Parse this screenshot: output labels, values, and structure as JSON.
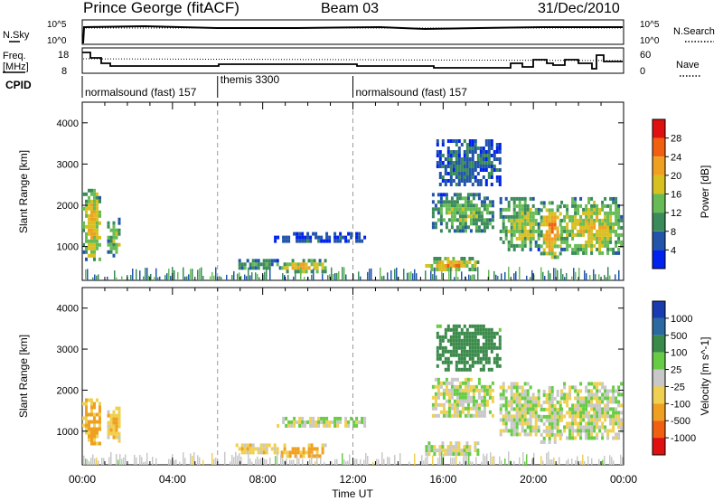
{
  "header": {
    "station": "Prince George (fitACF)",
    "beam": "Beam 03",
    "date": "31/Dec/2010"
  },
  "noise_panel": {
    "left_label": "N.Sky",
    "right_label": "N.Search",
    "left_ticks": [
      "10^5",
      "10^0"
    ],
    "right_ticks": [
      "10^5",
      "10^0"
    ]
  },
  "freq_panel": {
    "left_label_line1": "Freq.",
    "left_label_line2": "[MHz]",
    "right_label": "Nave",
    "left_ticks": [
      "18",
      "8"
    ],
    "right_ticks": [
      "60",
      "0"
    ]
  },
  "cpid": {
    "label": "CPID",
    "segments": [
      {
        "start_hour": 0,
        "name": "normalsound (fast)",
        "id": "157"
      },
      {
        "start_hour": 6,
        "name": "themis",
        "id": "3300"
      },
      {
        "start_hour": 12,
        "name": "normalsound (fast)",
        "id": "157"
      }
    ]
  },
  "chart_data": [
    {
      "type": "heatmap",
      "title": "",
      "xlabel": "",
      "ylabel": "Slant Range [km]",
      "x_range_hours": [
        0,
        24
      ],
      "ylim": [
        180,
        4500
      ],
      "y_ticks": [
        1000,
        2000,
        3000,
        4000
      ],
      "colorbar": {
        "label": "Power [dB]",
        "ticks": [
          "4",
          "8",
          "12",
          "16",
          "20",
          "24",
          "28"
        ],
        "colors": [
          "#0022ee",
          "#2255aa",
          "#3a8a5a",
          "#66bb55",
          "#d8c020",
          "#f0a020",
          "#f06010",
          "#e01010"
        ]
      },
      "echo_regions": [
        {
          "hours": [
            0.0,
            0.8
          ],
          "range_km": [
            700,
            2400
          ],
          "power_db": 20
        },
        {
          "hours": [
            1.1,
            1.7
          ],
          "range_km": [
            800,
            1700
          ],
          "power_db": 16
        },
        {
          "hours": [
            6.8,
            8.8
          ],
          "range_km": [
            450,
            700
          ],
          "power_db": 12
        },
        {
          "hours": [
            8.8,
            10.8
          ],
          "range_km": [
            400,
            700
          ],
          "power_db": 20
        },
        {
          "hours": [
            8.5,
            12.5
          ],
          "range_km": [
            1150,
            1350
          ],
          "power_db": 6
        },
        {
          "hours": [
            15.2,
            17.5
          ],
          "range_km": [
            450,
            750
          ],
          "power_db": 22
        },
        {
          "hours": [
            15.5,
            18.2
          ],
          "range_km": [
            1400,
            2300
          ],
          "power_db": 14
        },
        {
          "hours": [
            15.7,
            18.5
          ],
          "range_km": [
            2500,
            3600
          ],
          "power_db": 8
        },
        {
          "hours": [
            18.5,
            20.3
          ],
          "range_km": [
            900,
            2200
          ],
          "power_db": 16
        },
        {
          "hours": [
            20.3,
            21.2
          ],
          "range_km": [
            700,
            2100
          ],
          "power_db": 22
        },
        {
          "hours": [
            21.2,
            23.9
          ],
          "range_km": [
            800,
            2200
          ],
          "power_db": 18
        }
      ]
    },
    {
      "type": "heatmap",
      "title": "",
      "xlabel": "Time UT",
      "ylabel": "Slant Range [km]",
      "x_range_hours": [
        0,
        24
      ],
      "x_ticks": [
        "00:00",
        "04:00",
        "08:00",
        "12:00",
        "16:00",
        "20:00",
        "00:00"
      ],
      "ylim": [
        180,
        4500
      ],
      "y_ticks": [
        1000,
        2000,
        3000,
        4000
      ],
      "colorbar": {
        "label": "Velocity [m s^-1]",
        "ticks": [
          "1000",
          "500",
          "100",
          "25",
          "-25",
          "-100",
          "-500",
          "-1000"
        ],
        "colors": [
          "#1a3ab0",
          "#2a6aa0",
          "#3a8a4a",
          "#66cc44",
          "#c8c8c8",
          "#f0d050",
          "#f0a020",
          "#f06010",
          "#e01010"
        ]
      },
      "echo_regions": [
        {
          "hours": [
            0.0,
            0.8
          ],
          "range_km": [
            700,
            1800
          ],
          "velocity_ms": -150
        },
        {
          "hours": [
            1.1,
            1.7
          ],
          "range_km": [
            800,
            1600
          ],
          "velocity_ms": -100
        },
        {
          "hours": [
            6.8,
            8.8
          ],
          "range_km": [
            450,
            700
          ],
          "velocity_ms": -80
        },
        {
          "hours": [
            8.8,
            10.8
          ],
          "range_km": [
            400,
            700
          ],
          "velocity_ms": -150
        },
        {
          "hours": [
            8.5,
            12.5
          ],
          "range_km": [
            1150,
            1350
          ],
          "velocity_ms": 0
        },
        {
          "hours": [
            15.2,
            17.5
          ],
          "range_km": [
            450,
            750
          ],
          "velocity_ms": 0
        },
        {
          "hours": [
            15.5,
            18.2
          ],
          "range_km": [
            1400,
            2300
          ],
          "velocity_ms": 0
        },
        {
          "hours": [
            15.7,
            18.5
          ],
          "range_km": [
            2500,
            3600
          ],
          "velocity_ms": 300
        },
        {
          "hours": [
            18.5,
            20.3
          ],
          "range_km": [
            900,
            2200
          ],
          "velocity_ms": 0
        },
        {
          "hours": [
            20.3,
            21.2
          ],
          "range_km": [
            700,
            2100
          ],
          "velocity_ms": 0
        },
        {
          "hours": [
            21.2,
            23.9
          ],
          "range_km": [
            800,
            2200
          ],
          "velocity_ms": 0
        }
      ]
    }
  ]
}
